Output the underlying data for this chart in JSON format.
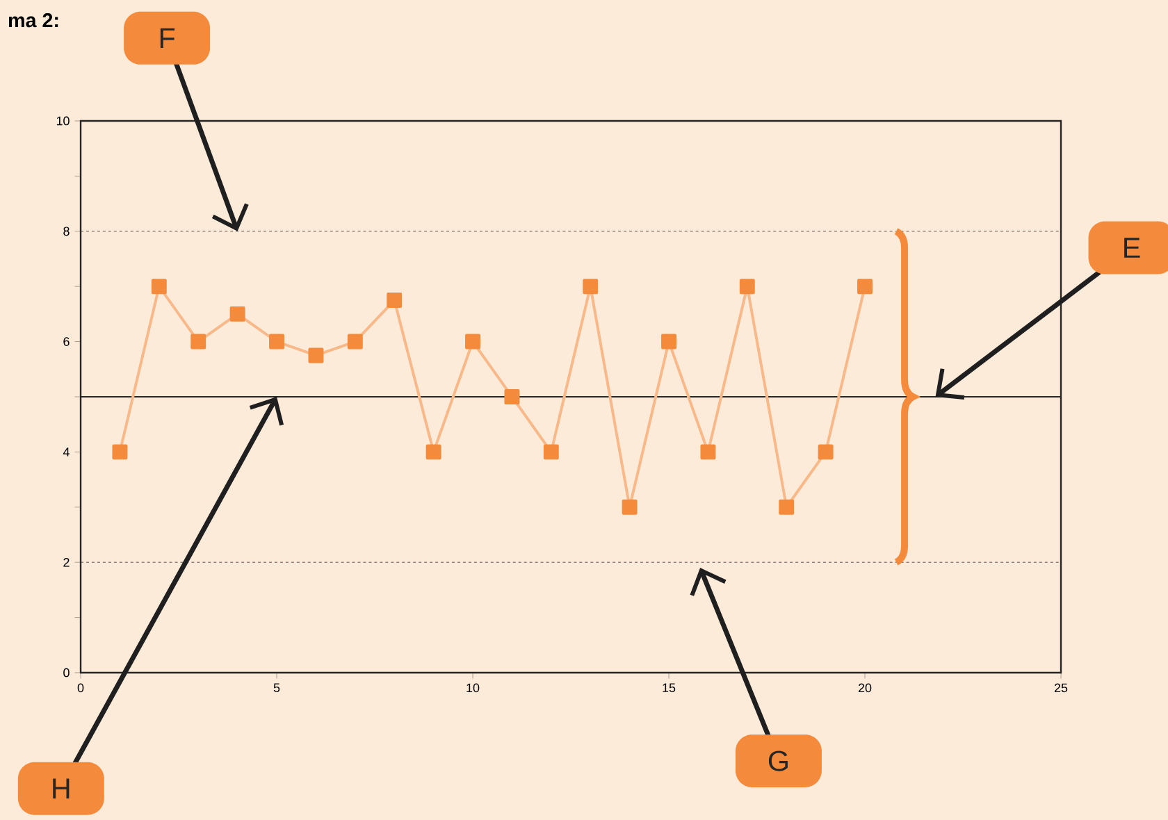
{
  "chart_data": {
    "type": "line",
    "title": "ma 2:",
    "x": [
      1,
      2,
      3,
      4,
      5,
      6,
      7,
      8,
      9,
      10,
      11,
      12,
      13,
      14,
      15,
      16,
      17,
      18,
      19,
      20
    ],
    "series": [
      {
        "color": "#f48b3c",
        "values": [
          4,
          7,
          6,
          6.5,
          6,
          5.75,
          6,
          6.75,
          4,
          6,
          5,
          4,
          7,
          3,
          6,
          4,
          7,
          3,
          4,
          7
        ]
      }
    ],
    "xlim": [
      0,
      25
    ],
    "xticks": [
      0,
      5,
      10,
      15,
      20,
      25
    ],
    "ylim": [
      0,
      10
    ],
    "yticks": [
      0,
      {
        "value": 1,
        "label": null
      },
      2,
      {
        "value": 3,
        "label": null
      },
      4,
      {
        "value": 5,
        "label": null
      },
      6,
      {
        "value": 7,
        "label": null
      },
      8,
      {
        "value": 9,
        "label": null
      },
      10
    ],
    "marker": "square",
    "line_style": "solid",
    "grid": false,
    "ref_lines": [
      {
        "axis": "y",
        "value": 8,
        "line_style": "dotted"
      },
      {
        "axis": "y",
        "value": 5,
        "line_style": "solid"
      },
      {
        "axis": "y",
        "value": 2,
        "line_style": "dotted"
      }
    ],
    "annotations": [
      {
        "text": "F",
        "x": 4,
        "y": 8
      },
      {
        "text": "E",
        "x": 21.8,
        "y": 5
      },
      {
        "text": "G",
        "x": 15.8,
        "y": 1.9
      },
      {
        "text": "H",
        "x": 5,
        "y": 5
      }
    ]
  }
}
